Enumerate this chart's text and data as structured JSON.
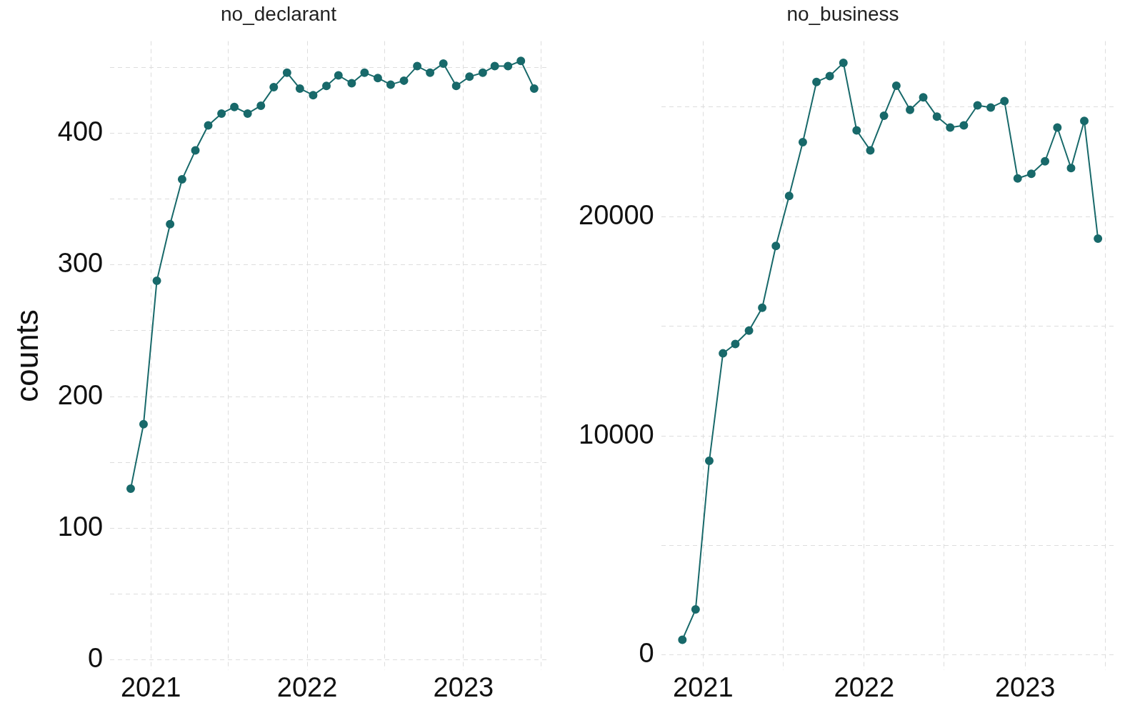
{
  "chart_data": [
    {
      "type": "line",
      "title": "no_declarant",
      "ylabel": "counts",
      "x": [
        "2020-11-15",
        "2020-12-15",
        "2021-01-15",
        "2021-02-15",
        "2021-03-15",
        "2021-04-15",
        "2021-05-15",
        "2021-06-15",
        "2021-07-15",
        "2021-08-15",
        "2021-09-15",
        "2021-10-15",
        "2021-11-15",
        "2021-12-15",
        "2022-01-15",
        "2022-02-15",
        "2022-03-15",
        "2022-04-15",
        "2022-05-15",
        "2022-06-15",
        "2022-07-15",
        "2022-08-15",
        "2022-09-15",
        "2022-10-15",
        "2022-11-15",
        "2022-12-15",
        "2023-01-15",
        "2023-02-15",
        "2023-03-15",
        "2023-04-15",
        "2023-05-15",
        "2023-06-15"
      ],
      "series": [
        {
          "color": "#18696a",
          "values": [
            130,
            179,
            288,
            331,
            365,
            387,
            406,
            415,
            420,
            415,
            421,
            435,
            446,
            434,
            429,
            436,
            444,
            438,
            446,
            442,
            437,
            440,
            451,
            446,
            453,
            436,
            443,
            446,
            451,
            451,
            455,
            434
          ]
        }
      ],
      "xlim": [
        "2020-09-28",
        "2023-07-22"
      ],
      "xticks": [
        {
          "value": "2021-01-01",
          "label": "2021"
        },
        {
          "value": "2021-07-01",
          "label": null
        },
        {
          "value": "2022-01-01",
          "label": "2022"
        },
        {
          "value": "2022-07-01",
          "label": null
        },
        {
          "value": "2023-01-01",
          "label": "2023"
        },
        {
          "value": "2023-07-01",
          "label": null
        }
      ],
      "ylim": [
        -8,
        470
      ],
      "yticks": [
        0,
        {
          "value": 50,
          "label": null
        },
        100,
        {
          "value": 150,
          "label": null
        },
        200,
        {
          "value": 250,
          "label": null
        },
        300,
        {
          "value": 350,
          "label": null
        },
        400,
        {
          "value": 450,
          "label": null
        }
      ],
      "grid": true,
      "legend": false,
      "marker": "circle",
      "line_style": "solid"
    },
    {
      "type": "line",
      "title": "no_business",
      "x": [
        "2020-11-15",
        "2020-12-15",
        "2021-01-15",
        "2021-02-15",
        "2021-03-15",
        "2021-04-15",
        "2021-05-15",
        "2021-06-15",
        "2021-07-15",
        "2021-08-15",
        "2021-09-15",
        "2021-10-15",
        "2021-11-15",
        "2021-12-15",
        "2022-01-15",
        "2022-02-15",
        "2022-03-15",
        "2022-04-15",
        "2022-05-15",
        "2022-06-15",
        "2022-07-15",
        "2022-08-15",
        "2022-09-15",
        "2022-10-15",
        "2022-11-15",
        "2022-12-15",
        "2023-01-15",
        "2023-02-15",
        "2023-03-15",
        "2023-04-15",
        "2023-05-15",
        "2023-06-15"
      ],
      "series": [
        {
          "color": "#18696a",
          "values": [
            700,
            2080,
            8860,
            13760,
            14190,
            14800,
            15840,
            18660,
            20940,
            23390,
            26140,
            26410,
            27010,
            23930,
            23020,
            24600,
            25970,
            24870,
            25440,
            24560,
            24060,
            24160,
            25070,
            24970,
            25270,
            21740,
            21950,
            22520,
            24060,
            22210,
            24360,
            18990
          ]
        }
      ],
      "xlim": [
        "2020-09-28",
        "2023-07-22"
      ],
      "xticks": [
        {
          "value": "2021-01-01",
          "label": "2021"
        },
        {
          "value": "2021-07-01",
          "label": null
        },
        {
          "value": "2022-01-01",
          "label": "2022"
        },
        {
          "value": "2022-07-01",
          "label": null
        },
        {
          "value": "2023-01-01",
          "label": "2023"
        },
        {
          "value": "2023-07-01",
          "label": null
        }
      ],
      "ylim": [
        -700,
        28000
      ],
      "yticks": [
        0,
        {
          "value": 5000,
          "label": null
        },
        10000,
        {
          "value": 15000,
          "label": null
        },
        20000,
        {
          "value": 25000,
          "label": null
        }
      ],
      "grid": true,
      "legend": false,
      "marker": "circle",
      "line_style": "solid"
    }
  ]
}
